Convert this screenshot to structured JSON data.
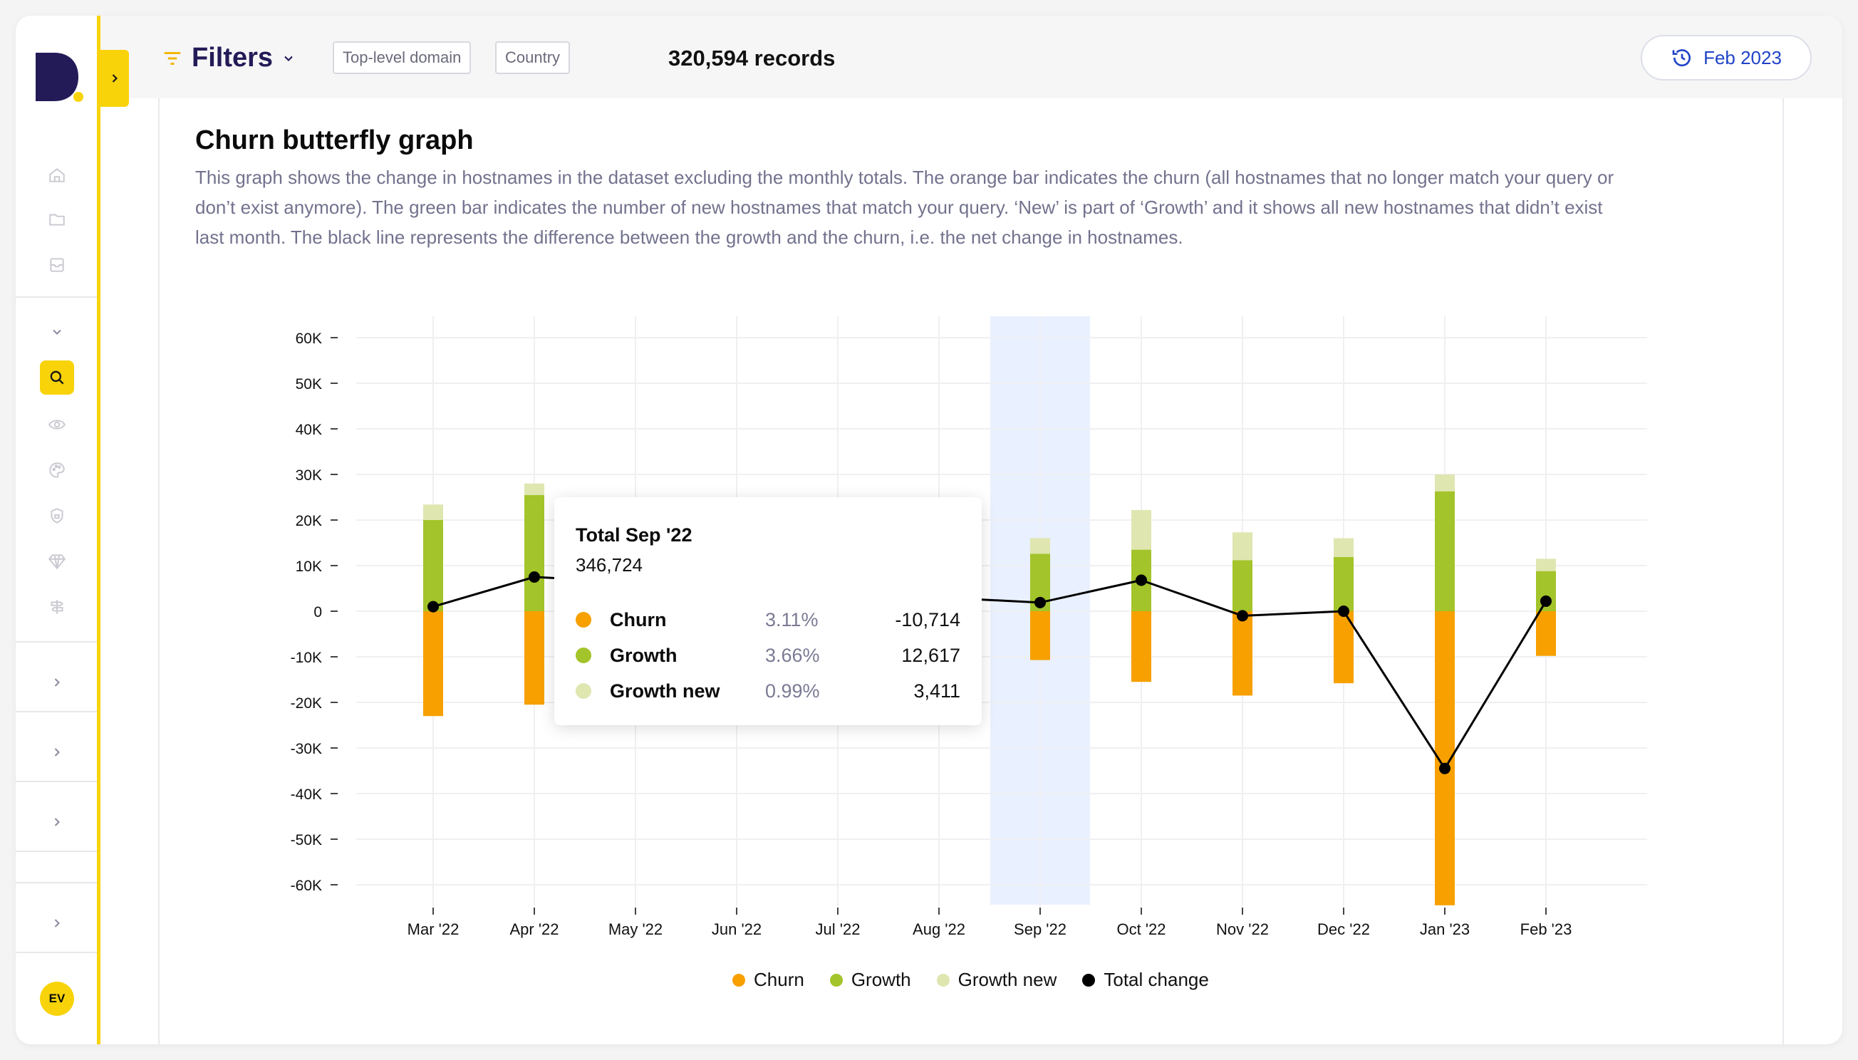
{
  "app": {
    "logo_letter": "D"
  },
  "sidebar": {
    "icons": [
      "home-icon",
      "folder-icon",
      "archive-icon",
      "chevron-down-icon",
      "search-icon",
      "eye-icon",
      "palette-icon",
      "shield-icon",
      "gem-icon",
      "signpost-icon"
    ],
    "avatar_initials": "EV"
  },
  "header": {
    "filters_label": "Filters",
    "chips": [
      "Top-level domain",
      "Country"
    ],
    "records": "320,594 records",
    "date_button": "Feb 2023"
  },
  "page": {
    "title": "Churn butterfly graph",
    "description": "This graph shows the change in hostnames in the dataset excluding the monthly totals. The orange bar indicates the churn (all hostnames that no longer match your query or don’t exist anymore). The green bar indicates the number of new hostnames that match your query. ‘New’ is part of ‘Growth’ and it shows all new hostnames that didn’t exist last month. The black line represents the difference between the growth and the churn, i.e. the net change in hostnames."
  },
  "tooltip": {
    "title": "Total Sep '22",
    "total": "346,724",
    "rows": [
      {
        "name": "Churn",
        "pct": "3.11%",
        "value": "-10,714",
        "color": "#f7a000"
      },
      {
        "name": "Growth",
        "pct": "3.66%",
        "value": "12,617",
        "color": "#a3c42a"
      },
      {
        "name": "Growth new",
        "pct": "0.99%",
        "value": "3,411",
        "color": "#dfe6b0"
      }
    ]
  },
  "colors": {
    "churn": "#f7a000",
    "growth": "#a3c42a",
    "growth_new": "#dfe6b0",
    "total_change": "#000000",
    "highlight": "#e9f0ff",
    "accent": "#f8d30a",
    "brand": "#231b57"
  },
  "chart_data": {
    "type": "bar",
    "categories": [
      "Mar '22",
      "Apr '22",
      "May '22",
      "Jun '22",
      "Jul '22",
      "Aug '22",
      "Sep '22",
      "Oct '22",
      "Nov '22",
      "Dec '22",
      "Jan '23",
      "Feb '23"
    ],
    "series": [
      {
        "name": "Churn",
        "values": [
          -23000,
          -20500,
          null,
          null,
          null,
          null,
          -10714,
          -15500,
          -18500,
          -15800,
          -64500,
          -9800
        ]
      },
      {
        "name": "Growth",
        "values": [
          20000,
          25500,
          null,
          null,
          null,
          null,
          12617,
          13500,
          11200,
          11900,
          26300,
          8800
        ]
      },
      {
        "name": "Growth new",
        "values": [
          3400,
          2500,
          null,
          null,
          null,
          null,
          3411,
          8700,
          6100,
          4100,
          3700,
          2700
        ]
      },
      {
        "name": "Total change",
        "values": [
          1000,
          7500,
          null,
          null,
          null,
          null,
          1900,
          6800,
          -1000,
          0,
          -34500,
          2200
        ]
      }
    ],
    "highlighted_category": "Sep '22",
    "y_ticks": [
      "60K",
      "50K",
      "40K",
      "30K",
      "20K",
      "10K",
      "0",
      "-10K",
      "-20K",
      "-30K",
      "-40K",
      "-50K",
      "-60K"
    ],
    "y_tick_values": [
      60000,
      50000,
      40000,
      30000,
      20000,
      10000,
      0,
      -10000,
      -20000,
      -30000,
      -40000,
      -50000,
      -60000
    ],
    "ylim": [
      -65000,
      65000
    ],
    "grid": true,
    "legend": [
      "Churn",
      "Growth",
      "Growth new",
      "Total change"
    ],
    "legend_position": "bottom"
  }
}
